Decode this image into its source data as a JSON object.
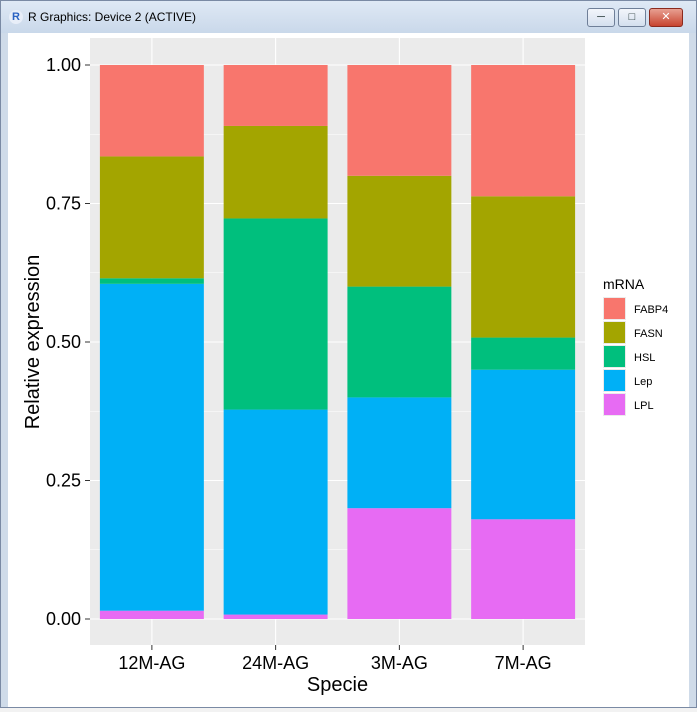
{
  "window": {
    "title": "R Graphics: Device 2 (ACTIVE)",
    "app_icon": "r-logo-icon",
    "buttons": {
      "minimize": "minimize-icon",
      "maximize": "maximize-icon",
      "close": "close-icon"
    }
  },
  "colors": {
    "FABP4": "#F8766D",
    "FASN": "#A3A500",
    "HSL": "#00BF7D",
    "Lep": "#00B0F6",
    "LPL": "#E76BF3",
    "panel": "#EBEBEB",
    "grid": "#FFFFFF"
  },
  "chart_data": {
    "type": "bar",
    "stacked": true,
    "title": "",
    "xlabel": "Specie",
    "ylabel": "Relative expression",
    "ylim": [
      0,
      1
    ],
    "yticks": [
      "0.00",
      "0.25",
      "0.50",
      "0.75",
      "1.00"
    ],
    "categories": [
      "12M-AG",
      "24M-AG",
      "3M-AG",
      "7M-AG"
    ],
    "legend_title": "mRNA",
    "legend_position": "right",
    "stack_order_bottom_to_top": [
      "LPL",
      "Lep",
      "HSL",
      "FASN",
      "FABP4"
    ],
    "series": [
      {
        "name": "FABP4",
        "values": [
          0.165,
          0.11,
          0.2,
          0.237
        ]
      },
      {
        "name": "FASN",
        "values": [
          0.22,
          0.167,
          0.2,
          0.255
        ]
      },
      {
        "name": "HSL",
        "values": [
          0.01,
          0.345,
          0.2,
          0.058
        ]
      },
      {
        "name": "Lep",
        "values": [
          0.59,
          0.37,
          0.2,
          0.27
        ]
      },
      {
        "name": "LPL",
        "values": [
          0.015,
          0.008,
          0.2,
          0.18
        ]
      }
    ]
  }
}
